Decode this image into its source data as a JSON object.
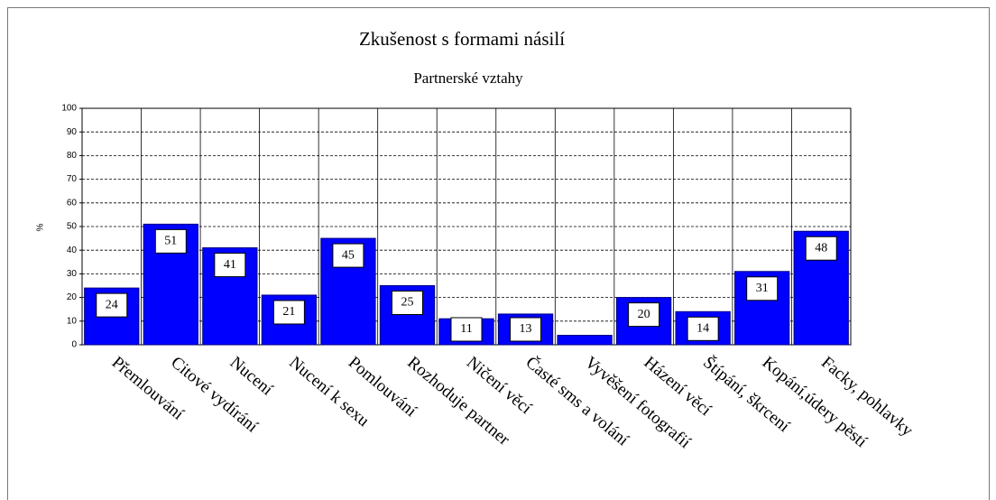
{
  "chart_data": {
    "type": "bar",
    "title": "Zkušenost s formami násilí",
    "subtitle": "Partnerské vztahy",
    "ylabel": "%",
    "categories": [
      "Přemlouvání",
      "Citové vydírání",
      "Nucení",
      "Nucení k sexu",
      "Pomlouvání",
      "Rozhoduje partner",
      "Ničení věcí",
      "Časté sms a volání",
      "Vyvěšení fotografií",
      "Házení věcí",
      "Štípání, škrcení",
      "Kopání,údery pěstí",
      "Facky, pohlavky"
    ],
    "values": [
      24,
      51,
      41,
      21,
      45,
      25,
      11,
      13,
      4,
      20,
      14,
      31,
      48
    ],
    "value_labels": [
      "24",
      "51",
      "41",
      "21",
      "45",
      "25",
      "11",
      "13",
      null,
      "20",
      "14",
      "31",
      "48"
    ],
    "color": "#0000ff",
    "ylim": [
      0,
      100
    ],
    "yticks": [
      0,
      10,
      20,
      30,
      40,
      50,
      60,
      70,
      80,
      90,
      100
    ],
    "grid": true
  }
}
